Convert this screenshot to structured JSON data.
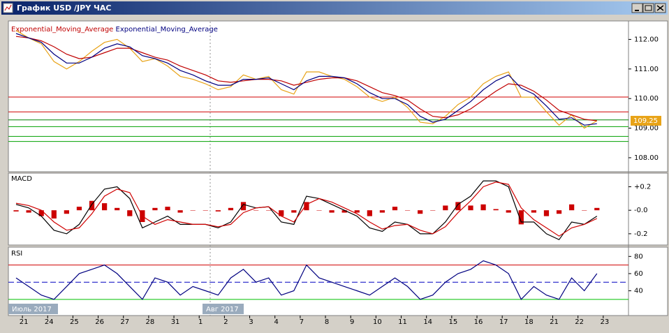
{
  "window": {
    "title": "График USD /JPY ЧАС"
  },
  "periods": [
    "Июль 2017",
    "Авг 2017"
  ],
  "chart_data": [
    {
      "type": "line",
      "categories": [
        null,
        "21",
        null,
        "24",
        null,
        "25",
        null,
        "26",
        null,
        "27",
        null,
        "28",
        null,
        "31",
        null,
        "1",
        null,
        "2",
        null,
        "3",
        null,
        "4",
        null,
        "7",
        null,
        "8",
        null,
        "9",
        null,
        "10",
        null,
        "11",
        null,
        "14",
        null,
        "15",
        null,
        "16",
        null,
        "17",
        null,
        "18",
        null,
        "21",
        null,
        "22",
        null,
        "23",
        null
      ],
      "ylim": [
        107.55,
        112.6
      ],
      "yticks": [
        {
          "value": 108,
          "label": "108.00"
        },
        {
          "value": 109,
          "label": "109.00"
        },
        {
          "value": 110,
          "label": "110.00"
        },
        {
          "value": 111,
          "label": "111.00"
        },
        {
          "value": 112,
          "label": "112.00"
        }
      ],
      "levels": [
        {
          "value": 110.05,
          "color": "#d00000"
        },
        {
          "value": 109.55,
          "color": "#d00000"
        },
        {
          "value": 109.28,
          "color": "#008000"
        },
        {
          "value": 109.05,
          "color": "#00a000"
        },
        {
          "value": 108.72,
          "color": "#00a000"
        },
        {
          "value": 108.55,
          "color": "#00a000"
        }
      ],
      "series": [
        {
          "color": "#e8a317",
          "values": [
            112.3,
            112.05,
            111.85,
            111.25,
            111.0,
            111.25,
            111.6,
            111.9,
            112.0,
            111.7,
            111.25,
            111.35,
            111.1,
            110.75,
            110.65,
            110.5,
            110.3,
            110.4,
            110.8,
            110.65,
            110.75,
            110.3,
            110.15,
            110.9,
            110.9,
            110.75,
            110.65,
            110.4,
            110.05,
            109.9,
            110.05,
            109.7,
            109.2,
            109.15,
            109.4,
            109.8,
            110.05,
            110.5,
            110.75,
            110.9,
            110.05,
            110.05,
            109.55,
            109.1,
            109.45,
            109.0,
            109.25,
            null,
            null
          ]
        },
        {
          "name": "Exponential_Moving_Average",
          "color": "#c00000",
          "values": [
            112.1,
            112.05,
            111.95,
            111.75,
            111.5,
            111.35,
            111.4,
            111.55,
            111.7,
            111.7,
            111.55,
            111.4,
            111.3,
            111.1,
            110.95,
            110.8,
            110.6,
            110.55,
            110.6,
            110.65,
            110.65,
            110.6,
            110.45,
            110.55,
            110.65,
            110.7,
            110.7,
            110.6,
            110.4,
            110.2,
            110.1,
            109.95,
            109.65,
            109.4,
            109.35,
            109.45,
            109.65,
            109.95,
            110.25,
            110.5,
            110.45,
            110.25,
            109.95,
            109.6,
            109.45,
            109.3,
            109.25,
            null,
            null
          ]
        },
        {
          "name": "Exponential_Moving_Average",
          "color": "#000080",
          "values": [
            112.2,
            112.05,
            111.9,
            111.5,
            111.2,
            111.2,
            111.4,
            111.7,
            111.85,
            111.75,
            111.45,
            111.35,
            111.2,
            110.95,
            110.8,
            110.6,
            110.45,
            110.45,
            110.65,
            110.65,
            110.7,
            110.5,
            110.3,
            110.6,
            110.75,
            110.75,
            110.7,
            110.5,
            110.2,
            110.0,
            110.0,
            109.8,
            109.4,
            109.2,
            109.3,
            109.6,
            109.9,
            110.3,
            110.6,
            110.8,
            110.35,
            110.15,
            109.75,
            109.3,
            109.35,
            109.1,
            109.15,
            null,
            null
          ]
        }
      ]
    },
    {
      "type": "combo",
      "title": "MACD",
      "ylim": [
        -0.29,
        0.31
      ],
      "yticks": [
        {
          "value": -0.2,
          "label": "-0.2"
        },
        {
          "value": 0,
          "label": "-0.0"
        },
        {
          "value": 0.2,
          "label": "+0.2"
        }
      ],
      "series": [
        {
          "type": "bar",
          "color": "#cc0000",
          "values": [
            -0.01,
            -0.02,
            -0.05,
            -0.07,
            -0.03,
            0.03,
            0.08,
            0.06,
            0.02,
            -0.05,
            -0.1,
            0.02,
            0.03,
            -0.02,
            0,
            0,
            -0.01,
            0.02,
            0.07,
            0,
            0,
            -0.05,
            -0.02,
            0.07,
            0,
            -0.02,
            -0.02,
            -0.02,
            -0.05,
            -0.02,
            0.03,
            0,
            -0.03,
            0,
            0.04,
            0.07,
            0.04,
            0.05,
            0.01,
            -0.02,
            -0.12,
            -0.02,
            -0.05,
            -0.03,
            0.05,
            0,
            0.02,
            null,
            null
          ]
        },
        {
          "type": "line",
          "color": "#000000",
          "values": [
            0.05,
            0.02,
            -0.05,
            -0.17,
            -0.2,
            -0.12,
            0.05,
            0.18,
            0.2,
            0.1,
            -0.15,
            -0.1,
            -0.05,
            -0.12,
            -0.12,
            -0.12,
            -0.15,
            -0.1,
            0.05,
            0.02,
            0.03,
            -0.1,
            -0.12,
            0.12,
            0.1,
            0.05,
            0,
            -0.05,
            -0.15,
            -0.18,
            -0.1,
            -0.12,
            -0.2,
            -0.2,
            -0.1,
            0.05,
            0.12,
            0.25,
            0.25,
            0.2,
            -0.1,
            -0.1,
            -0.2,
            -0.25,
            -0.1,
            -0.12,
            -0.05,
            null,
            null
          ]
        },
        {
          "type": "line",
          "color": "#d00000",
          "values": [
            0.06,
            0.04,
            0,
            -0.1,
            -0.17,
            -0.15,
            -0.03,
            0.12,
            0.18,
            0.15,
            -0.05,
            -0.12,
            -0.08,
            -0.1,
            -0.12,
            -0.12,
            -0.14,
            -0.12,
            -0.02,
            0.02,
            0.03,
            -0.05,
            -0.1,
            0.05,
            0.1,
            0.07,
            0.02,
            -0.03,
            -0.1,
            -0.16,
            -0.13,
            -0.12,
            -0.17,
            -0.2,
            -0.14,
            -0.02,
            0.08,
            0.2,
            0.24,
            0.22,
            0.02,
            -0.08,
            -0.15,
            -0.22,
            -0.15,
            -0.12,
            -0.07,
            null,
            null
          ]
        }
      ]
    },
    {
      "type": "line",
      "title": "RSI",
      "ylim": [
        12,
        90
      ],
      "yticks": [
        40,
        60,
        80
      ],
      "levels": [
        {
          "value": 70,
          "color": "#d00000"
        },
        {
          "value": 50,
          "color": "#0000c0",
          "dash": true
        },
        {
          "value": 30,
          "color": "#00c000"
        }
      ],
      "series": [
        {
          "color": "#000080",
          "values": [
            55,
            45,
            35,
            30,
            45,
            60,
            65,
            70,
            60,
            45,
            30,
            55,
            50,
            35,
            45,
            40,
            35,
            55,
            65,
            50,
            55,
            35,
            40,
            70,
            55,
            50,
            45,
            40,
            35,
            45,
            55,
            45,
            30,
            35,
            50,
            60,
            65,
            75,
            70,
            60,
            30,
            45,
            35,
            30,
            55,
            40,
            60,
            null,
            null
          ]
        }
      ]
    }
  ]
}
